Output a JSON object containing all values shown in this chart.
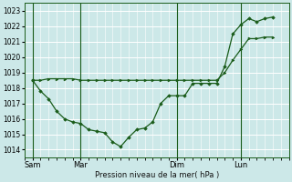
{
  "xlabel": "Pression niveau de la mer( hPa )",
  "bg_color": "#cce8e8",
  "grid_color": "#ffffff",
  "line_color": "#1a5c1a",
  "ylim": [
    1013.5,
    1023.5
  ],
  "yticks": [
    1014,
    1015,
    1016,
    1017,
    1018,
    1019,
    1020,
    1021,
    1022,
    1023
  ],
  "day_labels": [
    "Sam",
    "Mar",
    "Dim",
    "Lun"
  ],
  "day_positions": [
    0,
    3,
    9,
    13
  ],
  "xlim": [
    -0.5,
    16.0
  ],
  "series1_x": [
    0,
    0.5,
    1,
    1.5,
    2,
    2.5,
    3,
    3.5,
    4,
    4.5,
    5,
    5.5,
    6,
    6.5,
    7,
    7.5,
    8,
    8.5,
    9,
    9.5,
    10,
    10.5,
    11,
    11.5,
    12,
    12.5,
    13,
    13.5,
    14,
    14.5,
    15
  ],
  "series1_y": [
    1018.5,
    1018.5,
    1018.6,
    1018.6,
    1018.6,
    1018.6,
    1018.5,
    1018.5,
    1018.5,
    1018.5,
    1018.5,
    1018.5,
    1018.5,
    1018.5,
    1018.5,
    1018.5,
    1018.5,
    1018.5,
    1018.5,
    1018.5,
    1018.5,
    1018.5,
    1018.5,
    1018.5,
    1019.0,
    1019.8,
    1020.5,
    1021.2,
    1021.2,
    1021.3,
    1021.3
  ],
  "series2_x": [
    0,
    0.5,
    1,
    1.5,
    2,
    2.5,
    3,
    3.5,
    4,
    4.5,
    5,
    5.5,
    6,
    6.5,
    7,
    7.5,
    8,
    8.5,
    9,
    9.5,
    10,
    10.5,
    11,
    11.5,
    12,
    12.5,
    13,
    13.5,
    14,
    14.5,
    15
  ],
  "series2_y": [
    1018.5,
    1017.8,
    1017.3,
    1016.5,
    1016.0,
    1015.8,
    1015.7,
    1015.3,
    1015.2,
    1015.1,
    1014.5,
    1014.2,
    1014.8,
    1015.3,
    1015.4,
    1015.8,
    1017.0,
    1017.5,
    1017.5,
    1017.5,
    1018.3,
    1018.3,
    1018.3,
    1018.3,
    1019.4,
    1021.5,
    1022.1,
    1022.5,
    1022.3,
    1022.5,
    1022.6
  ]
}
